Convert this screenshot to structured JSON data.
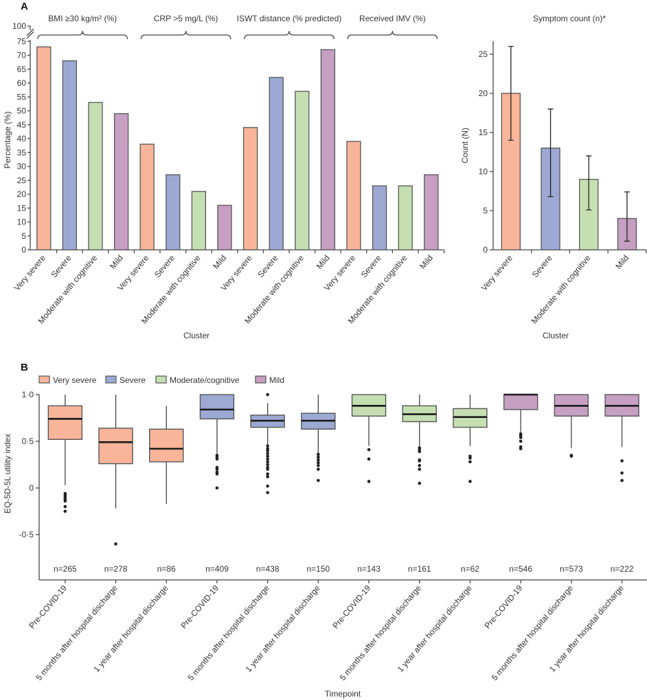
{
  "panel_a_label": "A",
  "panel_b_label": "B",
  "colors": {
    "Very severe": "#F9B59A",
    "Severe": "#9DA9D3",
    "Moderate": "#C6DFB2",
    "Mild": "#C69FC2",
    "outline": "#555555"
  },
  "chart_data": [
    {
      "type": "bar",
      "ylabel": "Percentage (%)",
      "xlabel": "Cluster",
      "ylim": [
        0,
        75
      ],
      "axis_break": true,
      "yticks": [
        0,
        5,
        10,
        15,
        20,
        25,
        30,
        35,
        40,
        45,
        50,
        55,
        60,
        65,
        70,
        75
      ],
      "ytick_break_label": "100",
      "categories": [
        "Very severe",
        "Severe",
        "Moderate with cognitive",
        "Mild"
      ],
      "groups": [
        {
          "label": "BMI ≥30 kg/m² (%)",
          "values": [
            73,
            68,
            53,
            49
          ]
        },
        {
          "label": "CRP >5 mg/L (%)",
          "values": [
            38,
            27,
            21,
            16
          ]
        },
        {
          "label": "ISWT distance (% predicted)",
          "values": [
            44,
            62,
            57,
            72
          ]
        },
        {
          "label": "Received IMV (%)",
          "values": [
            39,
            23,
            23,
            27
          ]
        }
      ]
    },
    {
      "type": "bar",
      "title": "Symptom count (n)*",
      "ylabel": "Count (N)",
      "xlabel": "Cluster",
      "ylim": [
        0,
        26.7
      ],
      "yticks": [
        0,
        5,
        10,
        15,
        20,
        25
      ],
      "categories": [
        "Very severe",
        "Severe",
        "Moderate with cognitive",
        "Mild"
      ],
      "values": [
        20,
        13,
        9,
        4
      ],
      "error_low": [
        14,
        6.8,
        5.1,
        1.1
      ],
      "error_high": [
        26,
        18,
        12,
        7.4
      ]
    },
    {
      "type": "box",
      "ylabel": "EQ-5D-5L utility index",
      "xlabel": "Timepoint",
      "ylim": [
        -0.98,
        1.0
      ],
      "yticks": [
        {
          "value": 1.0,
          "label": "1·0"
        },
        {
          "value": 0.5,
          "label": "0·5"
        },
        {
          "value": 0,
          "label": "0"
        },
        {
          "value": -0.5,
          "label": "-0·5"
        }
      ],
      "legend": [
        {
          "label": "Very severe",
          "cluster": "Very severe"
        },
        {
          "label": "Severe",
          "cluster": "Severe"
        },
        {
          "label": "Moderate/cognitive",
          "cluster": "Moderate"
        },
        {
          "label": "Mild",
          "cluster": "Mild"
        }
      ],
      "legend_position": "top-left",
      "boxes": [
        {
          "cluster": "Very severe",
          "timepoint": "Pre-COVID-19",
          "n": "n=265",
          "whisker_low": 0.03,
          "q1": 0.52,
          "median": 0.74,
          "q3": 0.88,
          "whisker_high": 1.0,
          "outliers": [
            -0.06,
            -0.08,
            -0.1,
            -0.12,
            -0.14,
            -0.2,
            -0.25
          ]
        },
        {
          "cluster": "Very severe",
          "timepoint": "5 months after hospital discharge",
          "n": "n=278",
          "whisker_low": -0.22,
          "q1": 0.26,
          "median": 0.49,
          "q3": 0.64,
          "whisker_high": 1.0,
          "outliers": [
            -0.6
          ]
        },
        {
          "cluster": "Very severe",
          "timepoint": "1 year after hospital discharge",
          "n": "n=86",
          "whisker_low": -0.17,
          "q1": 0.28,
          "median": 0.42,
          "q3": 0.63,
          "whisker_high": 0.88,
          "outliers": []
        },
        {
          "cluster": "Severe",
          "timepoint": "Pre-COVID-19",
          "n": "n=409",
          "whisker_low": 0.37,
          "q1": 0.74,
          "median": 0.84,
          "q3": 1.0,
          "whisker_high": 1.0,
          "outliers": [
            0.35,
            0.33,
            0.31,
            0.22,
            0.2,
            0.17,
            0.15,
            0
          ]
        },
        {
          "cluster": "Severe",
          "timepoint": "5 months after hospital discharge",
          "n": "n=438",
          "whisker_low": 0.46,
          "q1": 0.65,
          "median": 0.72,
          "q3": 0.78,
          "whisker_high": 0.91,
          "outliers": [
            1.0,
            0.45,
            0.42,
            0.4,
            0.37,
            0.34,
            0.31,
            0.28,
            0.25,
            0.22,
            0.2,
            0.15,
            0.12,
            0.02,
            -0.05
          ]
        },
        {
          "cluster": "Severe",
          "timepoint": "1 year after hospital discharge",
          "n": "n=150",
          "whisker_low": 0.37,
          "q1": 0.63,
          "median": 0.72,
          "q3": 0.8,
          "whisker_high": 1.0,
          "outliers": [
            0.36,
            0.33,
            0.3,
            0.27,
            0.24,
            0.2,
            0.08
          ]
        },
        {
          "cluster": "Moderate",
          "timepoint": "Pre-COVID-19",
          "n": "n=143",
          "whisker_low": 0.45,
          "q1": 0.77,
          "median": 0.88,
          "q3": 1.0,
          "whisker_high": 1.0,
          "outliers": [
            0.41,
            0.31,
            0.07
          ]
        },
        {
          "cluster": "Moderate",
          "timepoint": "5 months after hospital discharge",
          "n": "n=161",
          "whisker_low": 0.45,
          "q1": 0.71,
          "median": 0.79,
          "q3": 0.88,
          "whisker_high": 1.0,
          "outliers": [
            0.43,
            0.41,
            0.39,
            0.3,
            0.29,
            0.24,
            0.2,
            0.05
          ]
        },
        {
          "cluster": "Moderate",
          "timepoint": "1 year after hospital discharge",
          "n": "n=62",
          "whisker_low": 0.45,
          "q1": 0.65,
          "median": 0.76,
          "q3": 0.85,
          "whisker_high": 1.0,
          "outliers": [
            0.34,
            0.32,
            0.28,
            0.07
          ]
        },
        {
          "cluster": "Mild",
          "timepoint": "Pre-COVID-19",
          "n": "n=546",
          "whisker_low": 0.6,
          "q1": 0.84,
          "median": 1.0,
          "q3": 1.0,
          "whisker_high": 1.0,
          "outliers": [
            0.58,
            0.56,
            0.54,
            0.5,
            0.44,
            0.42
          ]
        },
        {
          "cluster": "Mild",
          "timepoint": "5 months after hospital discharge",
          "n": "n=573",
          "whisker_low": 0.43,
          "q1": 0.77,
          "median": 0.88,
          "q3": 1.0,
          "whisker_high": 1.0,
          "outliers": [
            0.35,
            0.34
          ]
        },
        {
          "cluster": "Mild",
          "timepoint": "1 year after hospital discharge",
          "n": "n=222",
          "whisker_low": 0.44,
          "q1": 0.77,
          "median": 0.88,
          "q3": 1.0,
          "whisker_high": 1.0,
          "outliers": [
            0.29,
            0.16,
            0.08
          ]
        }
      ]
    }
  ]
}
